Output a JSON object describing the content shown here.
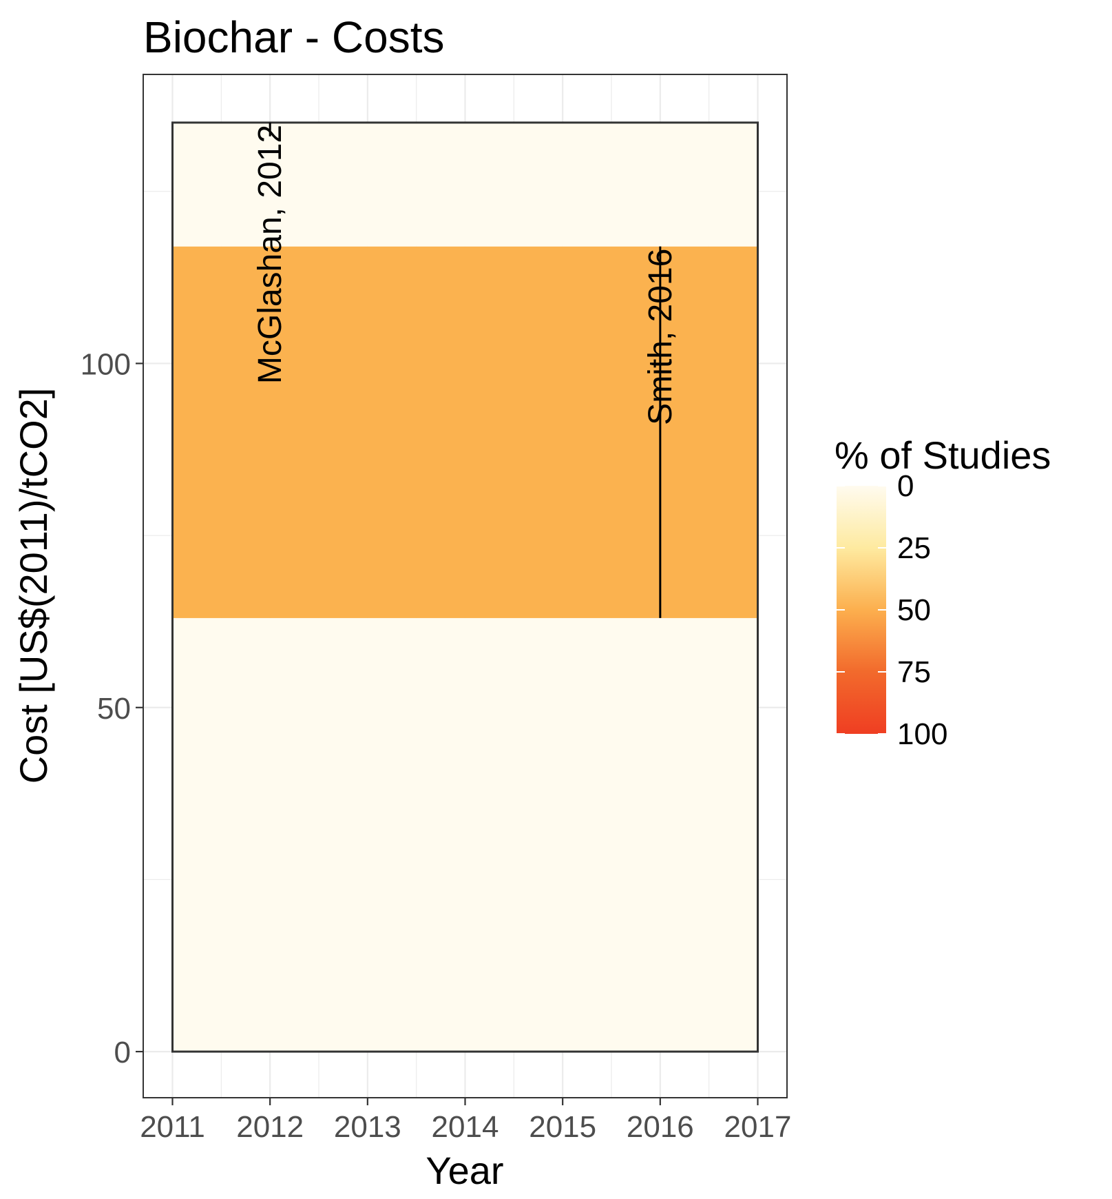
{
  "chart_data": {
    "type": "heatmap",
    "title": "Biochar - Costs",
    "xlabel": "Year",
    "ylabel": "Cost [US$(2011)/tCO2]",
    "xlim": [
      2010.7,
      2017.3
    ],
    "ylim": [
      -6.7,
      142
    ],
    "x_ticks": [
      "2011",
      "2012",
      "2013",
      "2014",
      "2015",
      "2016",
      "2017"
    ],
    "x_tick_values": [
      2011,
      2012,
      2013,
      2014,
      2015,
      2016,
      2017
    ],
    "y_ticks": [
      "0",
      "50",
      "100"
    ],
    "y_tick_values": [
      0,
      50,
      100
    ],
    "grid": true,
    "bands": [
      {
        "y0": 0,
        "y1": 63,
        "percent": 0
      },
      {
        "y0": 63,
        "y1": 117,
        "percent": 50
      },
      {
        "y0": 117,
        "y1": 135,
        "percent": 0
      }
    ],
    "outline": {
      "x0": 2011,
      "x1": 2017,
      "y0": 0,
      "y1": 135
    },
    "annotations": [
      {
        "label": "McGlashan, 2012",
        "x": 2012,
        "y_top": 135,
        "y_bottom": 133
      },
      {
        "label": "Smith, 2016",
        "x": 2016,
        "y_top": 117,
        "y_bottom": 63
      }
    ],
    "legend": {
      "title": "% of Studies",
      "position": "right",
      "ticks": [
        "0",
        "25",
        "50",
        "75",
        "100"
      ],
      "tick_values": [
        0,
        25,
        50,
        75,
        100
      ],
      "colors": [
        "#fffbef",
        "#feeaa0",
        "#fcaf4e",
        "#f26a2c",
        "#ef3e22"
      ]
    },
    "colors": {
      "band_low": "#fffbef",
      "band_mid": "#fbb24f",
      "panel_border": "#333333",
      "grid": "#ebebeb",
      "tick_label": "#4d4d4d"
    }
  }
}
